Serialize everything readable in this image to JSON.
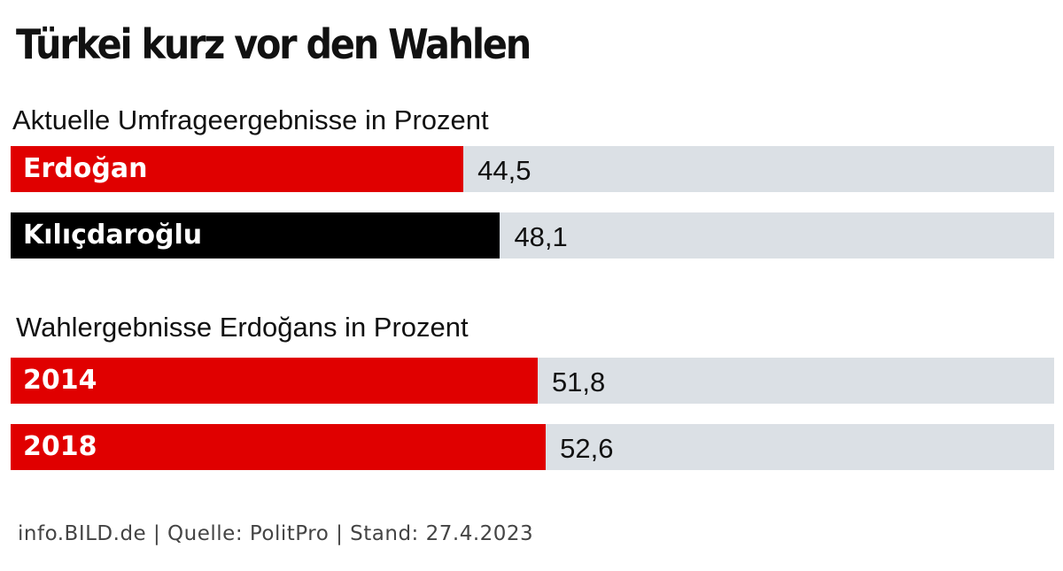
{
  "chart_data": {
    "type": "bar",
    "orientation": "horizontal",
    "title": "Türkei kurz vor den Wahlen",
    "xlim": [
      0,
      100
    ],
    "groups": [
      {
        "label": "Aktuelle Umfrageergebnisse in Prozent",
        "bars": [
          {
            "category": "Erdoğan",
            "value": 44.5,
            "value_label": "44,5",
            "color": "#e00000"
          },
          {
            "category": "Kılıçdaroğlu",
            "value": 48.1,
            "value_label": "48,1",
            "color": "#000000"
          }
        ]
      },
      {
        "label": "Wahlergebnisse Erdoğans in Prozent",
        "bars": [
          {
            "category": "2014",
            "value": 51.8,
            "value_label": "51,8",
            "color": "#e00000"
          },
          {
            "category": "2018",
            "value": 52.6,
            "value_label": "52,6",
            "color": "#e00000"
          }
        ]
      }
    ],
    "footer": "info.BILD.de | Quelle: PolitPro | Stand: 27.4.2023"
  },
  "colors": {
    "track": "#dbe0e5",
    "accent_red": "#e00000",
    "black": "#000000"
  }
}
